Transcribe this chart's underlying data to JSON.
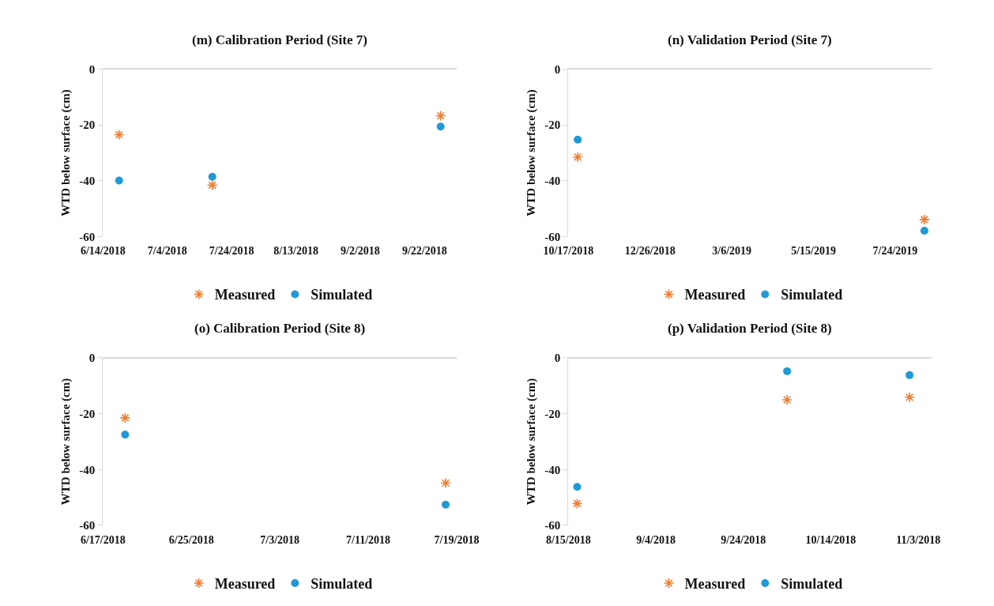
{
  "chart_data": [
    {
      "type": "scatter",
      "title": "(m) Calibration Period (Site 7)",
      "ylabel": "WTD below surface (cm)",
      "xlim": [
        "2018-06-14",
        "2018-10-02"
      ],
      "xticks": [
        {
          "value": "2018-06-14",
          "label": "6/14/2018"
        },
        {
          "value": "2018-07-04",
          "label": "7/4/2018"
        },
        {
          "value": "2018-07-24",
          "label": "7/24/2018"
        },
        {
          "value": "2018-08-13",
          "label": "8/13/2018"
        },
        {
          "value": "2018-09-02",
          "label": "9/2/2018"
        },
        {
          "value": "2018-09-22",
          "label": "9/22/2018"
        }
      ],
      "ylim": [
        -60,
        0
      ],
      "yticks": [
        0,
        -20,
        -40,
        -60
      ],
      "grid": false,
      "legend": "bottom",
      "series": [
        {
          "name": "Measured",
          "color": "#ed7d31",
          "marker": "cross",
          "x": [
            "2018-06-19",
            "2018-07-18",
            "2018-09-27"
          ],
          "values": [
            -23.5,
            -41.6,
            -16.7
          ]
        },
        {
          "name": "Simulated",
          "color": "#1f9ad6",
          "marker": "circle",
          "x": [
            "2018-06-19",
            "2018-07-18",
            "2018-09-27"
          ],
          "values": [
            -39.9,
            -38.6,
            -20.6
          ]
        }
      ]
    },
    {
      "type": "scatter",
      "title": "(n) Validation Period (Site 7)",
      "ylabel": "WTD below surface (cm)",
      "xlim": [
        "2018-10-17",
        "2019-08-24"
      ],
      "xticks": [
        {
          "value": "2018-10-17",
          "label": "10/17/2018"
        },
        {
          "value": "2018-12-26",
          "label": "12/26/2018"
        },
        {
          "value": "2019-03-06",
          "label": "3/6/2019"
        },
        {
          "value": "2019-05-15",
          "label": "5/15/2019"
        },
        {
          "value": "2019-07-24",
          "label": "7/24/2019"
        }
      ],
      "ylim": [
        -60,
        0
      ],
      "yticks": [
        0,
        -20,
        -40,
        -60
      ],
      "grid": false,
      "legend": "bottom",
      "series": [
        {
          "name": "Measured",
          "color": "#ed7d31",
          "marker": "cross",
          "x": [
            "2018-10-25",
            "2019-08-18"
          ],
          "values": [
            -31.5,
            -53.9
          ]
        },
        {
          "name": "Simulated",
          "color": "#1f9ad6",
          "marker": "circle",
          "x": [
            "2018-10-25",
            "2019-08-18"
          ],
          "values": [
            -25.3,
            -57.9
          ]
        }
      ]
    },
    {
      "type": "scatter",
      "title": "(o) Calibration Period (Site 8)",
      "ylabel": "WTD below surface (cm)",
      "xlim": [
        "2018-06-17",
        "2018-07-19"
      ],
      "xticks": [
        {
          "value": "2018-06-17",
          "label": "6/17/2018"
        },
        {
          "value": "2018-06-25",
          "label": "6/25/2018"
        },
        {
          "value": "2018-07-03",
          "label": "7/3/2018"
        },
        {
          "value": "2018-07-11",
          "label": "7/11/2018"
        },
        {
          "value": "2018-07-19",
          "label": "7/19/2018"
        }
      ],
      "ylim": [
        -60,
        0
      ],
      "yticks": [
        0,
        -20,
        -40,
        -60
      ],
      "grid": false,
      "legend": "bottom",
      "series": [
        {
          "name": "Measured",
          "color": "#ed7d31",
          "marker": "cross",
          "x": [
            "2018-06-19",
            "2018-07-18"
          ],
          "values": [
            -21.5,
            -44.8
          ]
        },
        {
          "name": "Simulated",
          "color": "#1f9ad6",
          "marker": "circle",
          "x": [
            "2018-06-19",
            "2018-07-18"
          ],
          "values": [
            -27.5,
            -52.6
          ]
        }
      ]
    },
    {
      "type": "scatter",
      "title": "(p) Validation Period (Site 8)",
      "ylabel": "WTD below surface (cm)",
      "xlim": [
        "2018-08-15",
        "2018-11-06"
      ],
      "xticks": [
        {
          "value": "2018-08-15",
          "label": "8/15/2018"
        },
        {
          "value": "2018-09-04",
          "label": "9/4/2018"
        },
        {
          "value": "2018-09-24",
          "label": "9/24/2018"
        },
        {
          "value": "2018-10-14",
          "label": "10/14/2018"
        },
        {
          "value": "2018-11-03",
          "label": "11/3/2018"
        }
      ],
      "ylim": [
        -60,
        0
      ],
      "yticks": [
        0,
        -20,
        -40,
        -60
      ],
      "grid": false,
      "legend": "bottom",
      "series": [
        {
          "name": "Measured",
          "color": "#ed7d31",
          "marker": "cross",
          "x": [
            "2018-08-17",
            "2018-10-04",
            "2018-11-01"
          ],
          "values": [
            -52.2,
            -15.0,
            -14.1
          ]
        },
        {
          "name": "Simulated",
          "color": "#1f9ad6",
          "marker": "circle",
          "x": [
            "2018-08-17",
            "2018-10-04",
            "2018-11-01"
          ],
          "values": [
            -46.2,
            -4.8,
            -6.2
          ]
        }
      ]
    }
  ]
}
